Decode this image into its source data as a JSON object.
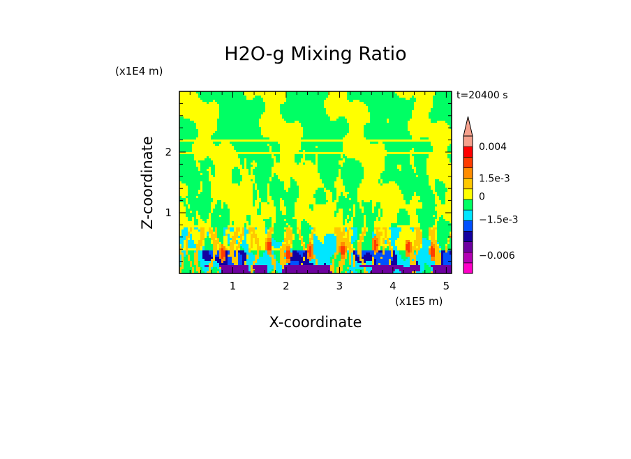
{
  "chart_data": {
    "type": "heatmap",
    "title": "H2O-g Mixing Ratio",
    "xlabel": "X-coordinate",
    "ylabel": "Z-coordinate",
    "x_unit": "(x1E5 m)",
    "y_unit": "(x1E4 m)",
    "time_label": "t=20400 s",
    "xlim": [
      0,
      5.1
    ],
    "ylim": [
      0,
      3
    ],
    "x_ticks": [
      {
        "value": 1,
        "label": "1"
      },
      {
        "value": 2,
        "label": "2"
      },
      {
        "value": 3,
        "label": "3"
      },
      {
        "value": 4,
        "label": "4"
      },
      {
        "value": 5,
        "label": "5"
      }
    ],
    "y_ticks": [
      {
        "value": 1,
        "label": "1"
      },
      {
        "value": 2,
        "label": "2"
      }
    ],
    "colorbar": {
      "colors": [
        "#ff00c8",
        "#b400b4",
        "#6e00a0",
        "#1400a0",
        "#0050ff",
        "#00e6ff",
        "#00ff64",
        "#ffff00",
        "#ffc800",
        "#ff8c00",
        "#ff3c00",
        "#ff0000",
        "#f5a08c"
      ],
      "labels": [
        {
          "value": "0.004",
          "label": "0.004"
        },
        {
          "value": "1.5e-3",
          "label": "1.5e-3"
        },
        {
          "value": "0",
          "label": "0"
        },
        {
          "value": "-1.5e-3",
          "label": "−1.5e-3"
        },
        {
          "value": "-0.006",
          "label": "−0.006"
        }
      ]
    }
  }
}
